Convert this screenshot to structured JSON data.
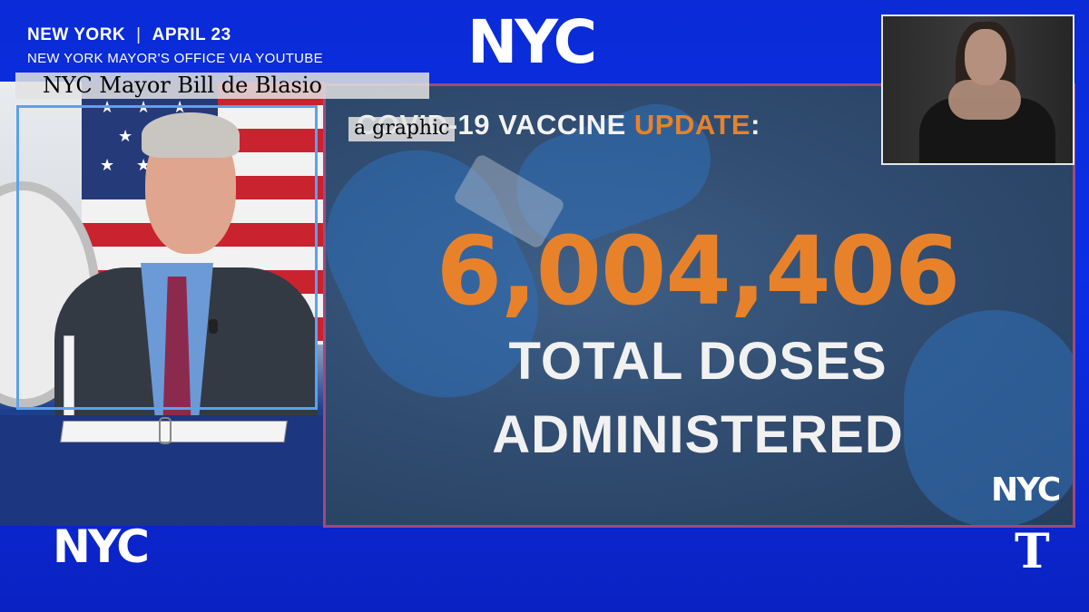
{
  "caption": {
    "location": "NEW YORK",
    "separator": "|",
    "date": "APRIL 23",
    "source": "NEW YORK MAYOR'S OFFICE VIA YOUTUBE"
  },
  "logos": {
    "nyc_top": "NYC",
    "nyc_bottom": "NYC",
    "nyc_graphic": "NYC",
    "nyt": "T"
  },
  "labels": {
    "mayor": "NYC Mayor Bill de Blasio",
    "graphic": "a graphic"
  },
  "graphic": {
    "title_prefix": "COVID-19 VACCINE ",
    "title_accent": "UPDATE",
    "title_suffix": ":",
    "number": "6,004,406",
    "line1": "TOTAL DOSES",
    "line2": "ADMINISTERED"
  },
  "colors": {
    "background": "#0b2fe6",
    "accent_orange": "#e8822a",
    "mayor_box": "#5aa2ec",
    "graphic_box": "#9c4a7f"
  }
}
